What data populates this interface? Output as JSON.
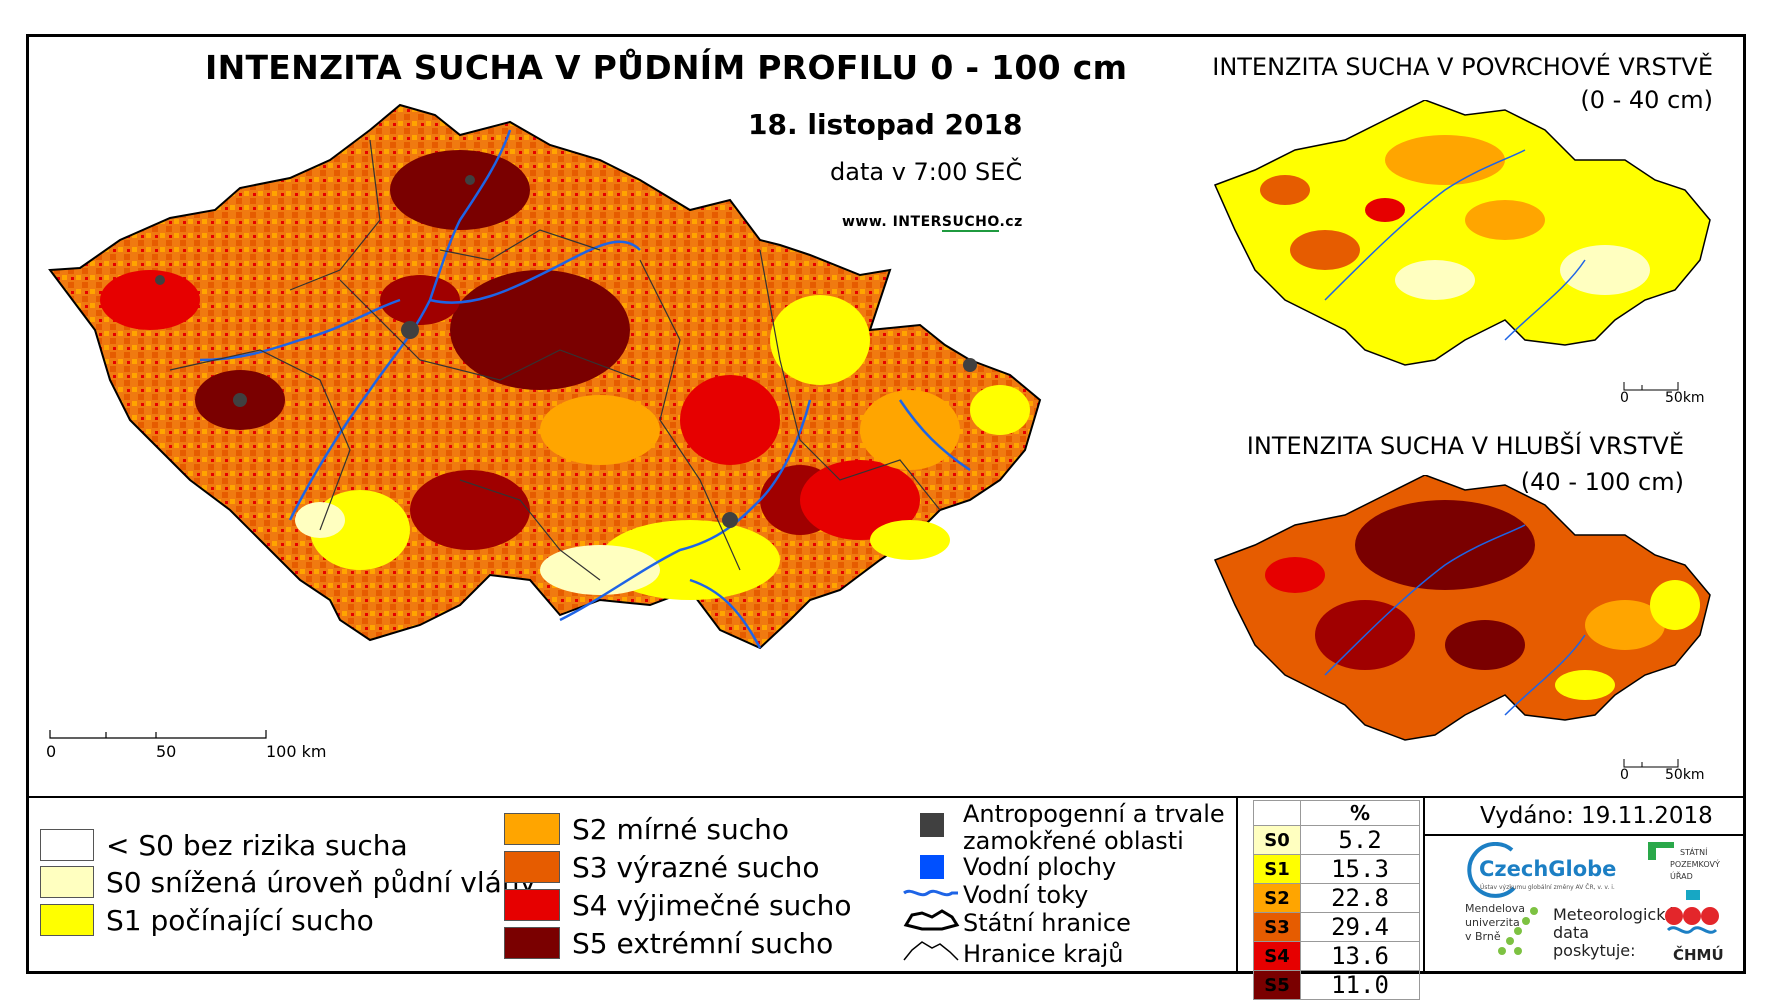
{
  "map": {
    "title": "INTENZITA SUCHA V PŮDNÍM PROFILU 0 - 100 cm",
    "date": "18. listopad 2018",
    "data_time": "data v 7:00 SEČ",
    "website_prefix": "www. INTER",
    "website_brand": "SUCHO",
    "website_suffix": ".cz",
    "scale_labels": [
      "0",
      "50",
      "100 km"
    ]
  },
  "inset_top": {
    "title": "INTENZITA SUCHA V POVRCHOVÉ VRSTVĚ",
    "subtitle": "(0 - 40 cm)",
    "scale_labels": [
      "0",
      "50km"
    ]
  },
  "inset_bottom": {
    "title": "INTENZITA SUCHA V HLUBŠÍ VRSTVĚ",
    "subtitle": "(40 - 100 cm)",
    "scale_labels": [
      "0",
      "50km"
    ]
  },
  "legend": {
    "drought_classes": [
      {
        "label": "< S0 bez rizika sucha",
        "color": "#ffffff"
      },
      {
        "label": "S0 snížená úroveň půdní vláhy",
        "color": "#ffffc0"
      },
      {
        "label": "S1 počínající sucho",
        "color": "#ffff00"
      },
      {
        "label": "S2 mírné sucho",
        "color": "#ffa500"
      },
      {
        "label": "S3 výrazné sucho",
        "color": "#e65c00"
      },
      {
        "label": "S4 výjimečné sucho",
        "color": "#e60000"
      },
      {
        "label": "S5 extrémní sucho",
        "color": "#7a0000"
      }
    ],
    "other": [
      {
        "label_line1": "Antropogenní a trvale",
        "label_line2": "zamokřené oblasti",
        "color": "#404040"
      },
      {
        "label": "Vodní plochy",
        "color": "#0050ff"
      },
      {
        "label": "Vodní toky",
        "color": "#1e64e6"
      },
      {
        "label": "Státní hranice",
        "color": "#000000"
      },
      {
        "label": "Hranice krajů",
        "color": "#000000"
      }
    ]
  },
  "stats": {
    "header": "%",
    "rows": [
      {
        "cls": "S0",
        "value": "5.2",
        "color": "#ffffc0"
      },
      {
        "cls": "S1",
        "value": "15.3",
        "color": "#ffff00"
      },
      {
        "cls": "S2",
        "value": "22.8",
        "color": "#ffa500"
      },
      {
        "cls": "S3",
        "value": "29.4",
        "color": "#e65c00"
      },
      {
        "cls": "S4",
        "value": "13.6",
        "color": "#e60000"
      },
      {
        "cls": "S5",
        "value": "11.0",
        "color": "#7a0000"
      }
    ]
  },
  "footer": {
    "issued": "Vydáno: 19.11.2018",
    "czechglobe": "CzechGlobe",
    "czechglobe_sub": "Ústav výzkumu globální změny AV ČR, v. v. i.",
    "spu_line1": "STÁTNÍ",
    "spu_line2": "POZEMKOVÝ",
    "spu_line3": "ÚŘAD",
    "mendel_line1": "Mendelova",
    "mendel_line2": "univerzita",
    "mendel_line3": "v Brně",
    "meteo_line1": "Meteorologická",
    "meteo_line2": "data",
    "meteo_line3": "poskytuje:",
    "chmu": "ČHMÚ"
  }
}
